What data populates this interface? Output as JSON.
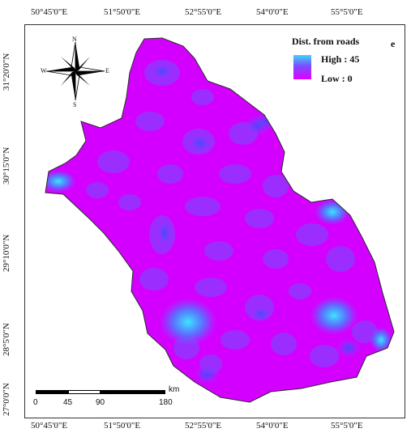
{
  "top_labels": [
    "50°45'0\"E",
    "51°50'0\"E",
    "52°55'0\"E",
    "54°0'0\"E",
    "55°5'0\"E"
  ],
  "bottom_labels": [
    "50°45'0\"E",
    "51°50'0\"E",
    "52°55'0\"E",
    "54°0'0\"E",
    "55°5'0\"E"
  ],
  "left_labels": [
    "31°20'0\"N",
    "30°15'0\"N",
    "29°10'0\"N",
    "28°5'0\"N",
    "27°0'0\"N"
  ],
  "legend": {
    "title": "Dist. from roads",
    "high": "High : 45",
    "low": "Low : 0",
    "colors": {
      "high": "#39d7ff",
      "mid": "#7d4cff",
      "low": "#e000ff"
    }
  },
  "panel_letter": "e",
  "north_arrow": {
    "n": "N",
    "s": "S",
    "e": "E",
    "w": "W"
  },
  "scalebar": {
    "unit": "km",
    "ticks": [
      "0",
      "45",
      "90",
      "180"
    ]
  }
}
